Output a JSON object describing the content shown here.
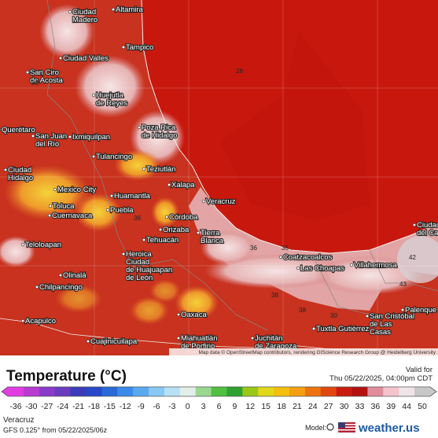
{
  "map": {
    "cities": [
      {
        "label": [
          "Ciudad",
          "Madero"
        ]
      },
      {
        "label": [
          "Altamira"
        ]
      },
      {
        "label": [
          "Tampico"
        ]
      },
      {
        "label": [
          "Ciudad Valles"
        ]
      },
      {
        "label": [
          "San Ciro",
          "de Acosta"
        ]
      },
      {
        "label": [
          "Huejutla",
          "de Reyes"
        ]
      },
      {
        "label": [
          "Poza Rica",
          "de Hidalgo"
        ]
      },
      {
        "label": [
          "Querétaro"
        ]
      },
      {
        "label": [
          "San Juan",
          "del Río"
        ]
      },
      {
        "label": [
          "Ixmiquilpan"
        ]
      },
      {
        "label": [
          "Tulancingo"
        ]
      },
      {
        "label": [
          "Ciudad",
          "Hidalgo"
        ]
      },
      {
        "label": [
          "Teziutlán"
        ]
      },
      {
        "label": [
          "Xalapa"
        ]
      },
      {
        "label": [
          "Mexico City"
        ]
      },
      {
        "label": [
          "Huamantla"
        ]
      },
      {
        "label": [
          "Toluca"
        ]
      },
      {
        "label": [
          "Cuernavaca"
        ]
      },
      {
        "label": [
          "Puebla"
        ]
      },
      {
        "label": [
          "Córdoba"
        ]
      },
      {
        "label": [
          "Orizaba"
        ]
      },
      {
        "label": [
          "Veracruz"
        ]
      },
      {
        "label": [
          "Tehuacán"
        ]
      },
      {
        "label": [
          "Tierra",
          "Blanca"
        ]
      },
      {
        "label": [
          "Teloloapan"
        ]
      },
      {
        "label": [
          "Heroica",
          "Ciudad",
          "de Huajuapan",
          "de León"
        ]
      },
      {
        "label": [
          "Olinalá"
        ]
      },
      {
        "label": [
          "Chilpancingo"
        ]
      },
      {
        "label": [
          "Acapulco"
        ]
      },
      {
        "label": [
          "Oaxaca"
        ]
      },
      {
        "label": [
          "Miahuatlán",
          "de Porfirio"
        ]
      },
      {
        "label": [
          "Juchitán",
          "de Zaragoza"
        ]
      },
      {
        "label": [
          "Cuajinicuilapa"
        ]
      },
      {
        "label": [
          "Coatzacoalcos"
        ]
      },
      {
        "label": [
          "Las Choapas"
        ]
      },
      {
        "label": [
          "Villahermosa"
        ]
      },
      {
        "label": [
          "Tuxtla Gutiérrez"
        ]
      },
      {
        "label": [
          "San Cristóbal",
          "de Las",
          "Casas"
        ]
      },
      {
        "label": [
          "Palenque"
        ]
      },
      {
        "label": [
          "Ciudad",
          "del Carmen"
        ]
      }
    ],
    "contour_labels": [
      28,
      38,
      36,
      36,
      38,
      38,
      30,
      42,
      43,
      36
    ],
    "attribution": "Map data © OpenStreetMap contributors, rendering GIScience Research Group @ Heidelberg University"
  },
  "legend": {
    "title": "Temperature (°C)",
    "valid_label": "Valid for",
    "valid_time": "Thu 05/22/2025, 04:00pm CDT",
    "ticks": [
      -36,
      -30,
      -27,
      -24,
      -21,
      -18,
      -15,
      -12,
      -9,
      -6,
      -3,
      0,
      3,
      6,
      9,
      12,
      15,
      18,
      21,
      24,
      27,
      30,
      33,
      36,
      39,
      44,
      50
    ],
    "colors": [
      "#e23de2",
      "#b83cd0",
      "#8a3cc8",
      "#6a3cc0",
      "#3c3cb8",
      "#2848c8",
      "#2a6ad8",
      "#3a8ae8",
      "#5aa8f0",
      "#88c8f4",
      "#b8e0f4",
      "#e0f0e8",
      "#9ad890",
      "#50c040",
      "#30a030",
      "#9ac818",
      "#e0d818",
      "#f4c010",
      "#f4a010",
      "#ec7410",
      "#e04810",
      "#c81c10",
      "#b41010",
      "#e08c9c",
      "#f4c4cc",
      "#f0e4e8",
      "#c8c8c8"
    ]
  },
  "footer": {
    "location": "Veracruz",
    "model_info": "GFS 0.125° from 05/22/2025/06z",
    "model_label": "Model:",
    "brand": "weather.us"
  }
}
